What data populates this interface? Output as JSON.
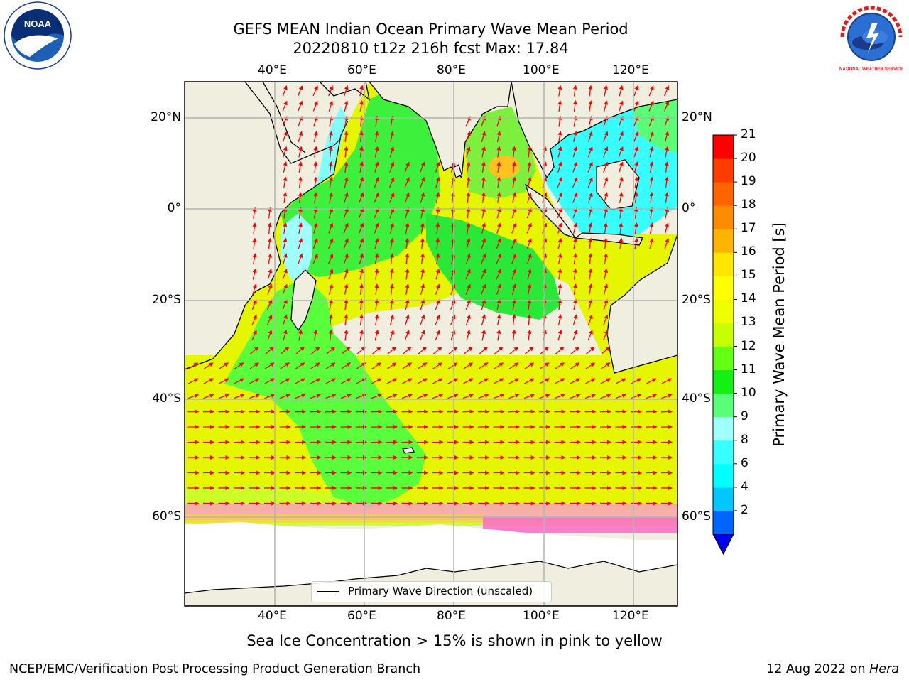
{
  "title": {
    "line1": "GEFS MEAN Indian Ocean Primary Wave Mean Period",
    "line2": "20220810 t12z 216h fcst   Max: 17.84"
  },
  "map": {
    "lon_labels": [
      "40°E",
      "60°E",
      "80°E",
      "100°E",
      "120°E"
    ],
    "lat_labels": [
      "20°N",
      "0°",
      "20°S",
      "40°S",
      "60°S"
    ],
    "lon_range": [
      20,
      130
    ],
    "lat_range": [
      -75,
      28
    ],
    "colors": {
      "land": "#efeedf",
      "ice_free": "#ffffff",
      "grid": "#b4b4b4",
      "arrows": "#ff0000"
    }
  },
  "colorbar": {
    "label": "Primary Wave Mean Period [s]",
    "ticks": [
      "21",
      "20",
      "19",
      "18",
      "17",
      "16",
      "15",
      "14",
      "13",
      "12",
      "11",
      "10",
      "9",
      "8",
      "6",
      "4",
      "2"
    ],
    "colors": [
      "#0000f0",
      "#0064ff",
      "#00c8ff",
      "#00ffff",
      "#37ffff",
      "#a0ffff",
      "#5aff78",
      "#14f014",
      "#64ff14",
      "#c8ff00",
      "#f0ff00",
      "#ffff00",
      "#ffe600",
      "#ffb400",
      "#ff8c00",
      "#ff6400",
      "#ff3c00",
      "#ff0000"
    ]
  },
  "legend": {
    "label": "Primary Wave Direction (unscaled)"
  },
  "note": "Sea Ice Concentration > 15% is shown in pink to yellow",
  "footer": {
    "left": "NCEP/EMC/Verification Post Processing Product Generation Branch",
    "right_date": "12 Aug 2022 on",
    "right_host": "Hera"
  },
  "logos": {
    "noaa_text": "NOAA",
    "nws_text": "NATIONAL WEATHER SERVICE"
  }
}
